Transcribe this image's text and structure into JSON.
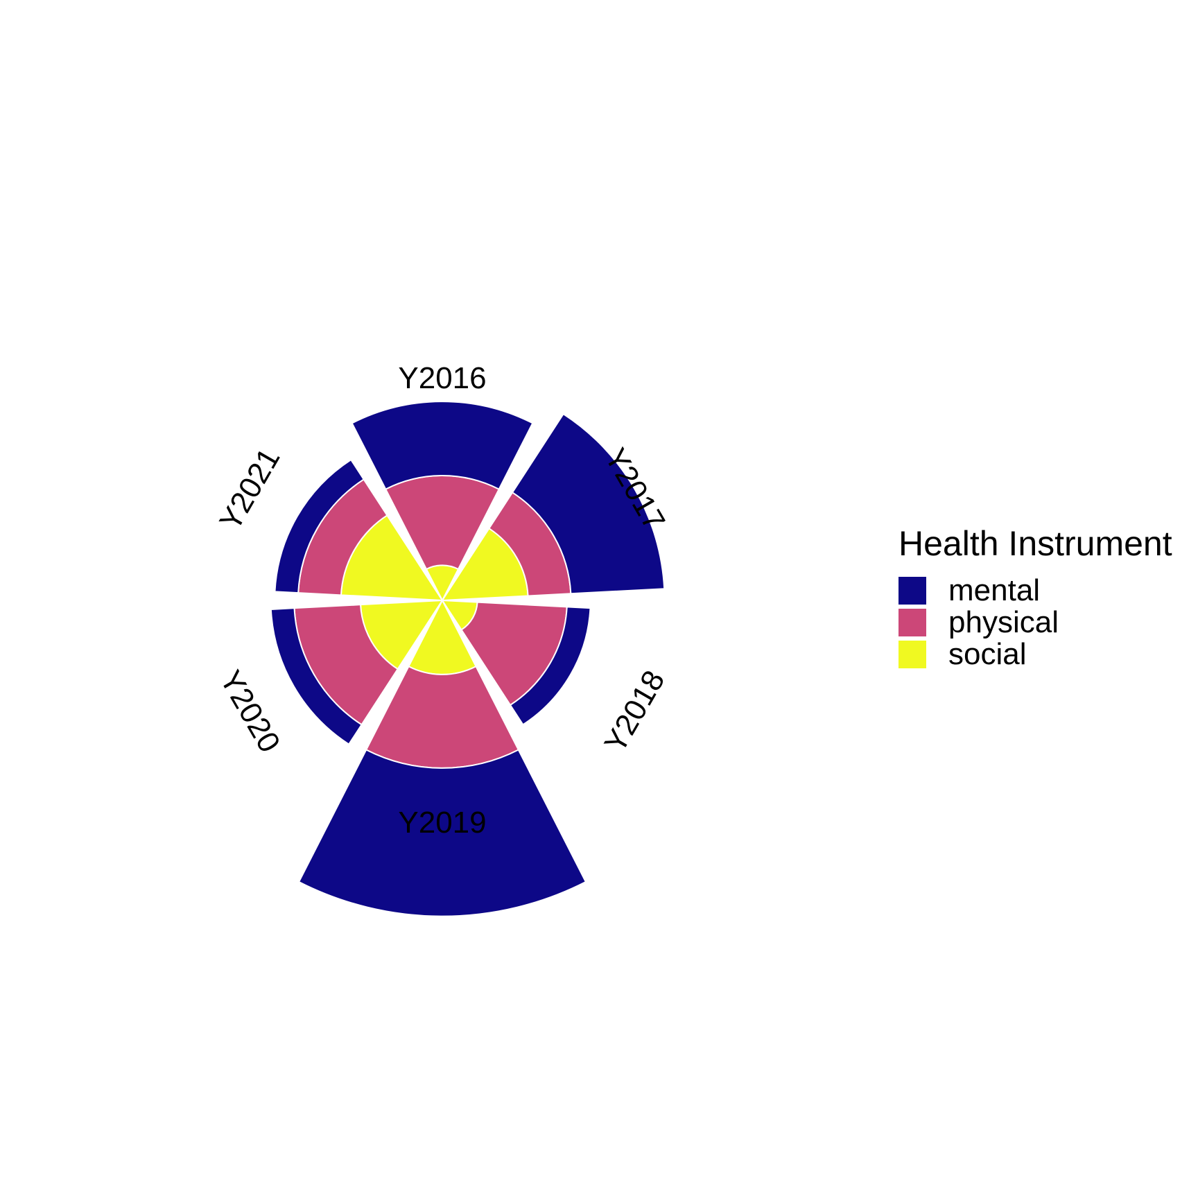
{
  "chart_data": {
    "type": "polar-stacked-bar",
    "title": "",
    "categories": [
      "Y2016",
      "Y2017",
      "Y2018",
      "Y2019",
      "Y2020",
      "Y2021"
    ],
    "series": [
      {
        "name": "social",
        "color": "#F0F921",
        "values": [
          4.5,
          11.0,
          4.5,
          9.5,
          10.5,
          13.0
        ]
      },
      {
        "name": "physical",
        "color": "#CC4778",
        "values": [
          11.5,
          5.5,
          11.5,
          12.0,
          8.5,
          5.5
        ]
      },
      {
        "name": "mental",
        "color": "#0D0887",
        "values": [
          9.5,
          12.0,
          3.0,
          19.0,
          3.0,
          3.0
        ]
      }
    ],
    "stack_order_outward": [
      "social",
      "physical",
      "mental"
    ],
    "r_max": 26,
    "grid": false,
    "legend": {
      "title": "Health Instrument",
      "position": "right",
      "items": [
        {
          "name": "mental",
          "color": "#0D0887"
        },
        {
          "name": "physical",
          "color": "#CC4778"
        },
        {
          "name": "social",
          "color": "#F0F921"
        }
      ]
    }
  }
}
